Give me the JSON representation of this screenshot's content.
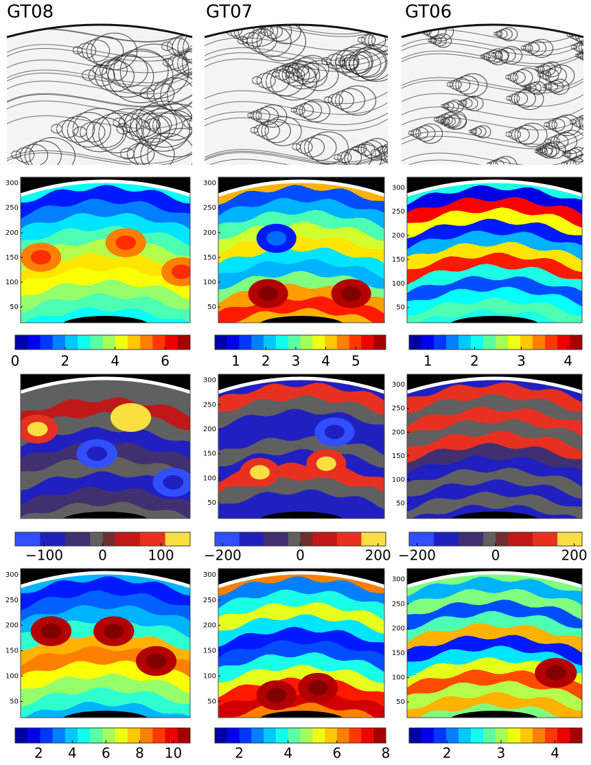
{
  "titles": [
    "GT08",
    "GT07",
    "GT06"
  ],
  "chart_data": [
    {
      "type": "contour",
      "ylim": [
        18,
        312
      ],
      "yticks": [
        50,
        100,
        150,
        200,
        250,
        300
      ],
      "clim": [
        0,
        7
      ],
      "cticks": [
        0,
        2,
        4,
        6
      ]
    },
    {
      "type": "contour",
      "ylim": [
        18,
        312
      ],
      "yticks": [
        50,
        100,
        150,
        200,
        250,
        300
      ],
      "clim": [
        0.3,
        6
      ],
      "cticks": [
        1,
        2,
        3,
        4,
        5
      ]
    },
    {
      "type": "contour",
      "ylim": [
        18,
        322
      ],
      "yticks": [
        50,
        100,
        150,
        200,
        250,
        300
      ],
      "clim": [
        0.6,
        4.3
      ],
      "cticks": [
        1,
        2,
        3,
        4
      ]
    },
    {
      "type": "contour",
      "ylim": [
        18,
        312
      ],
      "yticks": [],
      "clim": [
        -150,
        150
      ],
      "cticks": [
        {
          "value": -100,
          "label": "−100"
        },
        0,
        100
      ]
    },
    {
      "type": "contour",
      "ylim": [
        18,
        312
      ],
      "yticks": [
        50,
        100,
        150,
        200,
        250,
        300
      ],
      "clim": [
        -220,
        220
      ],
      "cticks": [
        {
          "value": -200,
          "label": "−200"
        },
        0,
        200
      ]
    },
    {
      "type": "contour",
      "ylim": [
        18,
        322
      ],
      "yticks": [
        50,
        100,
        150,
        200,
        250,
        300
      ],
      "clim": [
        -220,
        220
      ],
      "cticks": [
        {
          "value": -200,
          "label": "−200"
        },
        0,
        200
      ]
    },
    {
      "type": "contour",
      "ylim": [
        18,
        312
      ],
      "yticks": [
        50,
        100,
        150,
        200,
        250,
        300
      ],
      "clim": [
        0.6,
        11
      ],
      "cticks": [
        2,
        4,
        6,
        8,
        10
      ]
    },
    {
      "type": "contour",
      "ylim": [
        18,
        312
      ],
      "yticks": [
        50,
        100,
        150,
        200,
        250,
        300
      ],
      "clim": [
        1,
        8
      ],
      "cticks": [
        2,
        4,
        6,
        8
      ]
    },
    {
      "type": "contour",
      "ylim": [
        18,
        322
      ],
      "yticks": [
        50,
        100,
        150,
        200,
        250,
        300
      ],
      "clim": [
        1.3,
        4.5
      ],
      "cticks": [
        2,
        3,
        4
      ]
    }
  ]
}
